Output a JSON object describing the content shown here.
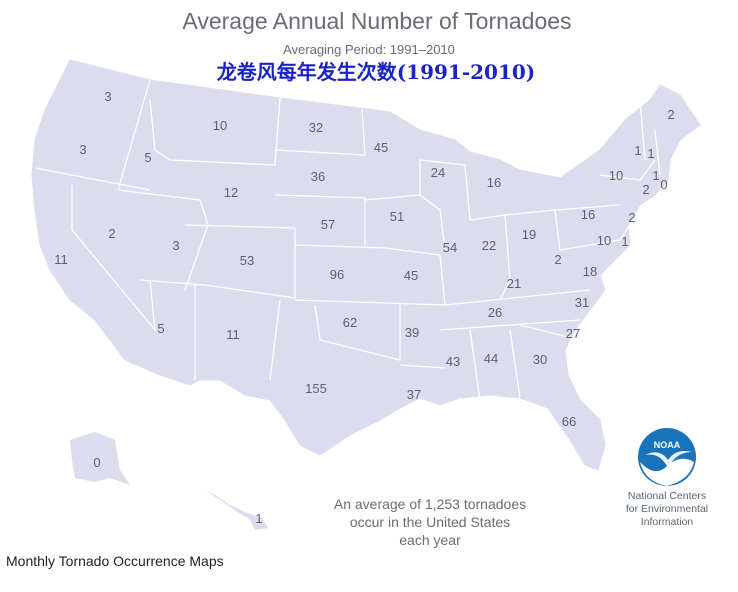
{
  "map": {
    "title": "Average Annual Number of Tornadoes",
    "subtitle": "Averaging Period: 1991–2010",
    "subtitle_cn": "龙卷风每年发生次数(1991-2010)",
    "note_lines": [
      "An average of 1,253 tornadoes",
      "occur in the United States",
      "each year"
    ],
    "logo": {
      "wordmark": "NOAA",
      "org_lines": [
        "National Centers",
        "for Environmental",
        "Information"
      ]
    },
    "colors": {
      "land": "#dcdcef",
      "state_border": "#ffffff",
      "label_text": "#5f5f6e",
      "cn_title": "#1a23c8",
      "logo_blue": "#1a73b8"
    },
    "state_counts": [
      {
        "state": "WA",
        "value": "3"
      },
      {
        "state": "OR",
        "value": "3"
      },
      {
        "state": "CA",
        "value": "11"
      },
      {
        "state": "ID",
        "value": "5"
      },
      {
        "state": "NV",
        "value": "2"
      },
      {
        "state": "MT",
        "value": "10"
      },
      {
        "state": "WY",
        "value": "12"
      },
      {
        "state": "UT",
        "value": "3"
      },
      {
        "state": "AZ",
        "value": "5"
      },
      {
        "state": "CO",
        "value": "53"
      },
      {
        "state": "NM",
        "value": "11"
      },
      {
        "state": "ND",
        "value": "32"
      },
      {
        "state": "SD",
        "value": "36"
      },
      {
        "state": "NE",
        "value": "57"
      },
      {
        "state": "KS",
        "value": "96"
      },
      {
        "state": "OK",
        "value": "62"
      },
      {
        "state": "TX",
        "value": "155"
      },
      {
        "state": "MN",
        "value": "45"
      },
      {
        "state": "IA",
        "value": "51"
      },
      {
        "state": "MO",
        "value": "45"
      },
      {
        "state": "AR",
        "value": "39"
      },
      {
        "state": "LA",
        "value": "37"
      },
      {
        "state": "WI",
        "value": "24"
      },
      {
        "state": "IL",
        "value": "54"
      },
      {
        "state": "MI",
        "value": "16"
      },
      {
        "state": "IN",
        "value": "22"
      },
      {
        "state": "OH",
        "value": "19"
      },
      {
        "state": "KY",
        "value": "21"
      },
      {
        "state": "TN",
        "value": "26"
      },
      {
        "state": "MS",
        "value": "43"
      },
      {
        "state": "AL",
        "value": "44"
      },
      {
        "state": "GA",
        "value": "30"
      },
      {
        "state": "FL",
        "value": "66"
      },
      {
        "state": "SC",
        "value": "27"
      },
      {
        "state": "NC",
        "value": "31"
      },
      {
        "state": "VA",
        "value": "18"
      },
      {
        "state": "WV",
        "value": "2"
      },
      {
        "state": "PA",
        "value": "16"
      },
      {
        "state": "NY",
        "value": "10"
      },
      {
        "state": "VT",
        "value": "1"
      },
      {
        "state": "NH",
        "value": "1"
      },
      {
        "state": "ME",
        "value": "2"
      },
      {
        "state": "MA",
        "value": "1"
      },
      {
        "state": "RI",
        "value": "0"
      },
      {
        "state": "CT",
        "value": "2"
      },
      {
        "state": "NJ",
        "value": "2"
      },
      {
        "state": "MD",
        "value": "10"
      },
      {
        "state": "DE",
        "value": "1"
      },
      {
        "state": "AK",
        "value": "0"
      },
      {
        "state": "HI",
        "value": "1"
      }
    ]
  },
  "caption": "Monthly Tornado Occurrence Maps"
}
